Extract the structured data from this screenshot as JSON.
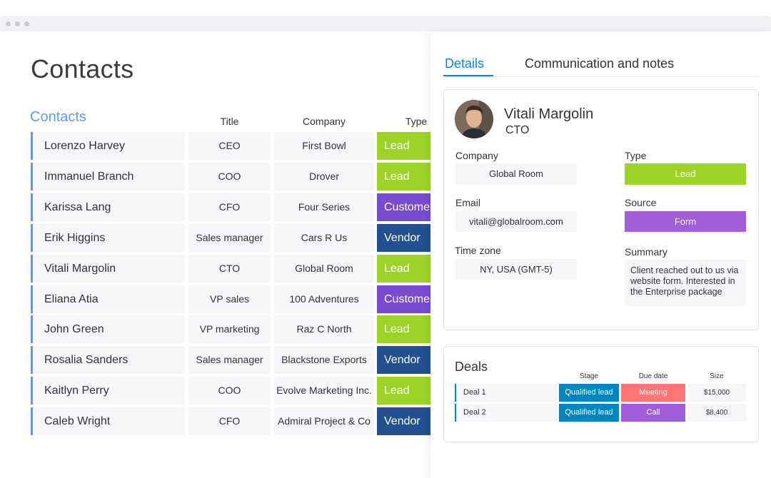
{
  "page": {
    "title": "Contacts",
    "group_title": "Contacts",
    "columns": {
      "title": "Title",
      "company": "Company",
      "type": "Type"
    }
  },
  "colors": {
    "lead": "#9cd326",
    "customer": "#784bd1",
    "vendor": "#225091",
    "accent": "#579bfc",
    "tab_active": "#0085ff",
    "form": "#a25ddc",
    "qualified": "#0086c0",
    "meeting": "#ff7575",
    "call": "#a25ddc"
  },
  "contacts": [
    {
      "name": "Lorenzo Harvey",
      "title": "CEO",
      "company": "First Bowl",
      "type": "Lead",
      "type_color": "#9cd326"
    },
    {
      "name": "Immanuel Branch",
      "title": "COO",
      "company": "Drover",
      "type": "Lead",
      "type_color": "#9cd326"
    },
    {
      "name": "Karissa Lang",
      "title": "CFO",
      "company": "Four Series",
      "type": "Customer",
      "type_color": "#784bd1"
    },
    {
      "name": "Erik Higgins",
      "title": "Sales manager",
      "company": "Cars R Us",
      "type": "Vendor",
      "type_color": "#225091"
    },
    {
      "name": "Vitali Margolin",
      "title": "CTO",
      "company": "Global Room",
      "type": "Lead",
      "type_color": "#9cd326"
    },
    {
      "name": "Eliana Atia",
      "title": "VP sales",
      "company": "100 Adventures",
      "type": "Customer",
      "type_color": "#784bd1"
    },
    {
      "name": "John Green",
      "title": "VP marketing",
      "company": "Raz C North",
      "type": "Lead",
      "type_color": "#9cd326"
    },
    {
      "name": "Rosalia Sanders",
      "title": "Sales manager",
      "company": "Blackstone Exports",
      "type": "Vendor",
      "type_color": "#225091"
    },
    {
      "name": "Kaitlyn Perry",
      "title": "COO",
      "company": "Evolve Marketing Inc.",
      "type": "Lead",
      "type_color": "#9cd326"
    },
    {
      "name": "Caleb Wright",
      "title": "CFO",
      "company": "Admiral Project & Co",
      "type": "Vendor",
      "type_color": "#225091"
    }
  ],
  "detail": {
    "tabs": {
      "details": "Details",
      "notes": "Communication and notes"
    },
    "person": {
      "name": "Vitali Margolin",
      "role": "CTO"
    },
    "fields": {
      "company_label": "Company",
      "company": "Global Room",
      "type_label": "Type",
      "type": "Lead",
      "email_label": "Email",
      "email": "vitali@globalroom.com",
      "source_label": "Source",
      "source": "Form",
      "timezone_label": "Time zone",
      "timezone": "NY, USA (GMT-5)",
      "summary_label": "Summary",
      "summary": "Client reached out to us via website form. Interested in the Enterprise package"
    }
  },
  "deals": {
    "title": "Deals",
    "columns": {
      "stage": "Stage",
      "due": "Due date",
      "size": "Size"
    },
    "rows": [
      {
        "name": "Deal 1",
        "stage": "Qualified lead",
        "due": "Meeting",
        "due_color": "#ff7575",
        "size": "$15,000"
      },
      {
        "name": "Deal 2",
        "stage": "Qualified lead",
        "due": "Call",
        "due_color": "#a25ddc",
        "size": "$8,400"
      }
    ]
  }
}
